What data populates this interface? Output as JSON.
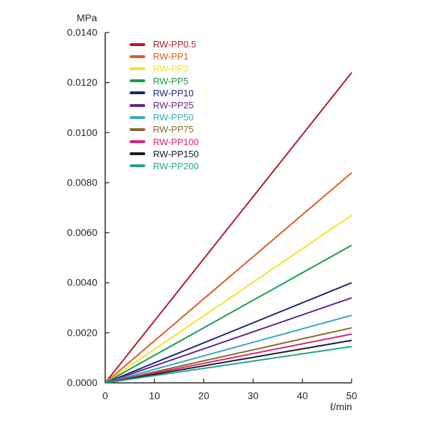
{
  "chart_data": {
    "type": "line",
    "title": "",
    "y_unit_label": "MPa",
    "x_unit_label": "ℓ/min",
    "xlim": [
      0,
      50
    ],
    "ylim": [
      0,
      0.014
    ],
    "x": [
      0,
      50
    ],
    "x_ticks": [
      0,
      10,
      20,
      30,
      40,
      50
    ],
    "y_ticks": [
      "0.0000",
      "0.0020",
      "0.0040",
      "0.0060",
      "0.0080",
      "0.0100",
      "0.0120",
      "0.0140"
    ],
    "grid": false,
    "legend_position": "upper-left-inside",
    "axis_color": "#1f1f1f",
    "series": [
      {
        "name": "RW-PP0.5",
        "color": "#b5182d",
        "values": [
          0,
          0.0124
        ]
      },
      {
        "name": "RW-PP1",
        "color": "#dd5c1c",
        "values": [
          0,
          0.0084
        ]
      },
      {
        "name": "RW-PP3",
        "color": "#f0e32c",
        "values": [
          0,
          0.0067
        ]
      },
      {
        "name": "RW-PP5",
        "color": "#169b4e",
        "values": [
          0,
          0.0055
        ]
      },
      {
        "name": "RW-PP10",
        "color": "#1e2475",
        "values": [
          0,
          0.004
        ]
      },
      {
        "name": "RW-PP25",
        "color": "#61268c",
        "values": [
          0,
          0.0034
        ]
      },
      {
        "name": "RW-PP50",
        "color": "#3aa6c9",
        "values": [
          0,
          0.0027
        ]
      },
      {
        "name": "RW-PP75",
        "color": "#8a682f",
        "values": [
          0,
          0.0022
        ]
      },
      {
        "name": "RW-PP100",
        "color": "#da2377",
        "values": [
          0,
          0.00195
        ]
      },
      {
        "name": "RW-PP150",
        "color": "#1c1c1c",
        "values": [
          0,
          0.0017
        ]
      },
      {
        "name": "RW-PP200",
        "color": "#22a290",
        "values": [
          0,
          0.00145
        ]
      }
    ]
  }
}
